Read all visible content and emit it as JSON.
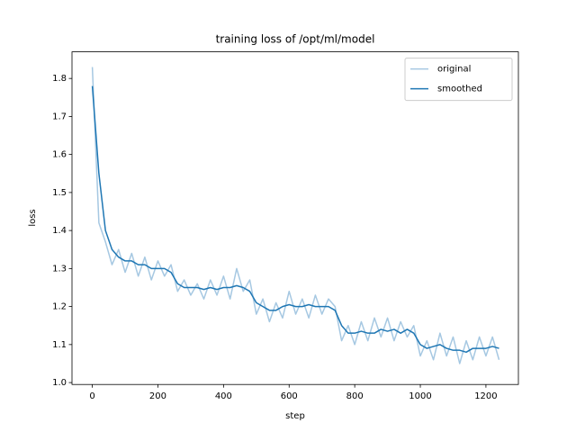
{
  "chart_data": {
    "type": "line",
    "title": "training loss of /opt/ml/model",
    "x_label": "step",
    "y_label": "loss",
    "x": [
      0,
      20,
      40,
      60,
      80,
      100,
      120,
      140,
      160,
      180,
      200,
      220,
      240,
      260,
      280,
      300,
      320,
      340,
      360,
      380,
      400,
      420,
      440,
      460,
      480,
      500,
      520,
      540,
      560,
      580,
      600,
      620,
      640,
      660,
      680,
      700,
      720,
      740,
      760,
      780,
      800,
      820,
      840,
      860,
      880,
      900,
      920,
      940,
      960,
      980,
      1000,
      1020,
      1040,
      1060,
      1080,
      1100,
      1120,
      1140,
      1160,
      1180,
      1200,
      1220,
      1240
    ],
    "series": [
      {
        "name": "original",
        "color": "#a6c8e2",
        "values": [
          1.83,
          1.42,
          1.37,
          1.31,
          1.35,
          1.29,
          1.34,
          1.28,
          1.33,
          1.27,
          1.32,
          1.28,
          1.31,
          1.24,
          1.27,
          1.23,
          1.26,
          1.22,
          1.27,
          1.23,
          1.28,
          1.22,
          1.3,
          1.24,
          1.27,
          1.18,
          1.22,
          1.16,
          1.21,
          1.17,
          1.24,
          1.18,
          1.22,
          1.17,
          1.23,
          1.18,
          1.22,
          1.2,
          1.11,
          1.15,
          1.1,
          1.16,
          1.11,
          1.17,
          1.12,
          1.17,
          1.11,
          1.16,
          1.12,
          1.15,
          1.07,
          1.11,
          1.06,
          1.13,
          1.07,
          1.12,
          1.05,
          1.11,
          1.06,
          1.12,
          1.07,
          1.12,
          1.06
        ]
      },
      {
        "name": "smoothed",
        "color": "#1f77b4",
        "values": [
          1.78,
          1.55,
          1.4,
          1.35,
          1.33,
          1.32,
          1.32,
          1.31,
          1.31,
          1.3,
          1.3,
          1.3,
          1.29,
          1.26,
          1.25,
          1.25,
          1.25,
          1.245,
          1.25,
          1.245,
          1.25,
          1.25,
          1.255,
          1.25,
          1.24,
          1.21,
          1.2,
          1.19,
          1.19,
          1.2,
          1.205,
          1.2,
          1.2,
          1.205,
          1.2,
          1.2,
          1.2,
          1.19,
          1.15,
          1.13,
          1.13,
          1.135,
          1.13,
          1.13,
          1.14,
          1.135,
          1.14,
          1.13,
          1.14,
          1.13,
          1.1,
          1.09,
          1.095,
          1.1,
          1.09,
          1.085,
          1.085,
          1.08,
          1.09,
          1.09,
          1.09,
          1.095,
          1.09
        ]
      }
    ],
    "xlim": [
      -62,
      1299
    ],
    "ylim": [
      0.995,
      1.87
    ],
    "xticks": [
      0,
      200,
      400,
      600,
      800,
      1000,
      1200
    ],
    "yticks": [
      {
        "value": 1,
        "label": "1.0"
      },
      1.1,
      1.2,
      1.3,
      1.4,
      1.5,
      1.6,
      1.7,
      1.8
    ],
    "legend": "upper right"
  }
}
